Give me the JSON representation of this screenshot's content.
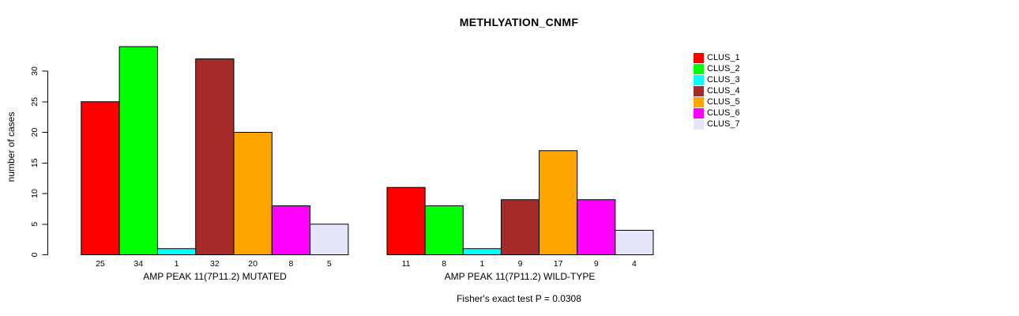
{
  "chart_data": {
    "type": "bar",
    "title": "METHLYATION_CNMF",
    "ylabel": "number of cases",
    "xlabel": "",
    "ylim": [
      0,
      35
    ],
    "yticks": [
      0,
      5,
      10,
      15,
      20,
      25,
      30
    ],
    "grid": false,
    "legend_position": "right",
    "legend": [
      "CLUS_1",
      "CLUS_2",
      "CLUS_3",
      "CLUS_4",
      "CLUS_5",
      "CLUS_6",
      "CLUS_7"
    ],
    "colors": [
      "#FF0000",
      "#00FF00",
      "#00FFFF",
      "#A52A2A",
      "#FFA500",
      "#FF00FF",
      "#E6E6FA"
    ],
    "bar_border_color": "#000000",
    "groups": [
      {
        "label": "AMP PEAK 11(7P11.2) MUTATED",
        "values": [
          25,
          34,
          1,
          32,
          20,
          8,
          5
        ]
      },
      {
        "label": "AMP PEAK 11(7P11.2) WILD-TYPE",
        "values": [
          11,
          8,
          1,
          9,
          17,
          9,
          4
        ]
      }
    ],
    "annotation": "Fisher's exact test P = 0.0308"
  }
}
